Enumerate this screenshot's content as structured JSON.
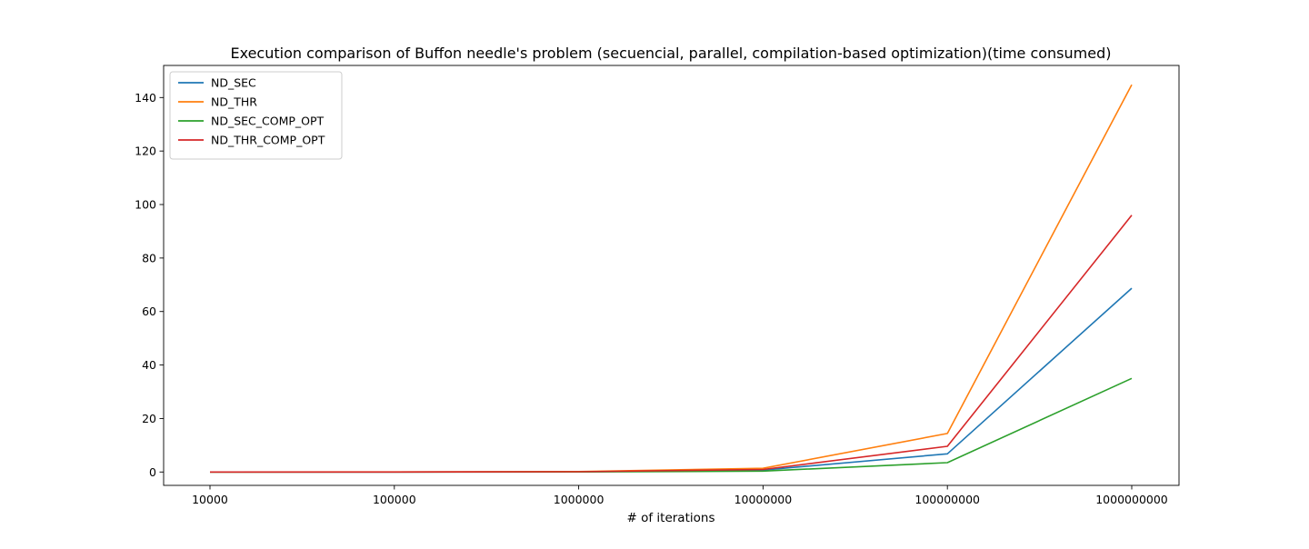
{
  "chart_data": {
    "type": "line",
    "title": "Execution comparison of Buffon needle's problem (secuencial, parallel, compilation-based optimization)(time consumed)",
    "xlabel": "# of iterations",
    "ylabel": "",
    "categories": [
      "10000",
      "100000",
      "1000000",
      "10000000",
      "100000000",
      "1000000000"
    ],
    "ylim": [
      -5,
      152
    ],
    "yticks": [
      0,
      20,
      40,
      60,
      80,
      100,
      120,
      140
    ],
    "grid": false,
    "legend_position": "top-left",
    "series": [
      {
        "name": "ND_SEC",
        "color": "#1f77b4",
        "values": [
          0.0,
          0.01,
          0.07,
          0.7,
          6.8,
          68.7
        ]
      },
      {
        "name": "ND_THR",
        "color": "#ff7f0e",
        "values": [
          0.0,
          0.02,
          0.15,
          1.4,
          14.4,
          144.8
        ]
      },
      {
        "name": "ND_SEC_COMP_OPT",
        "color": "#2ca02c",
        "values": [
          0.0,
          0.01,
          0.04,
          0.35,
          3.5,
          35.0
        ]
      },
      {
        "name": "ND_THR_COMP_OPT",
        "color": "#d62728",
        "values": [
          0.0,
          0.01,
          0.1,
          0.95,
          9.6,
          96.0
        ]
      }
    ]
  }
}
